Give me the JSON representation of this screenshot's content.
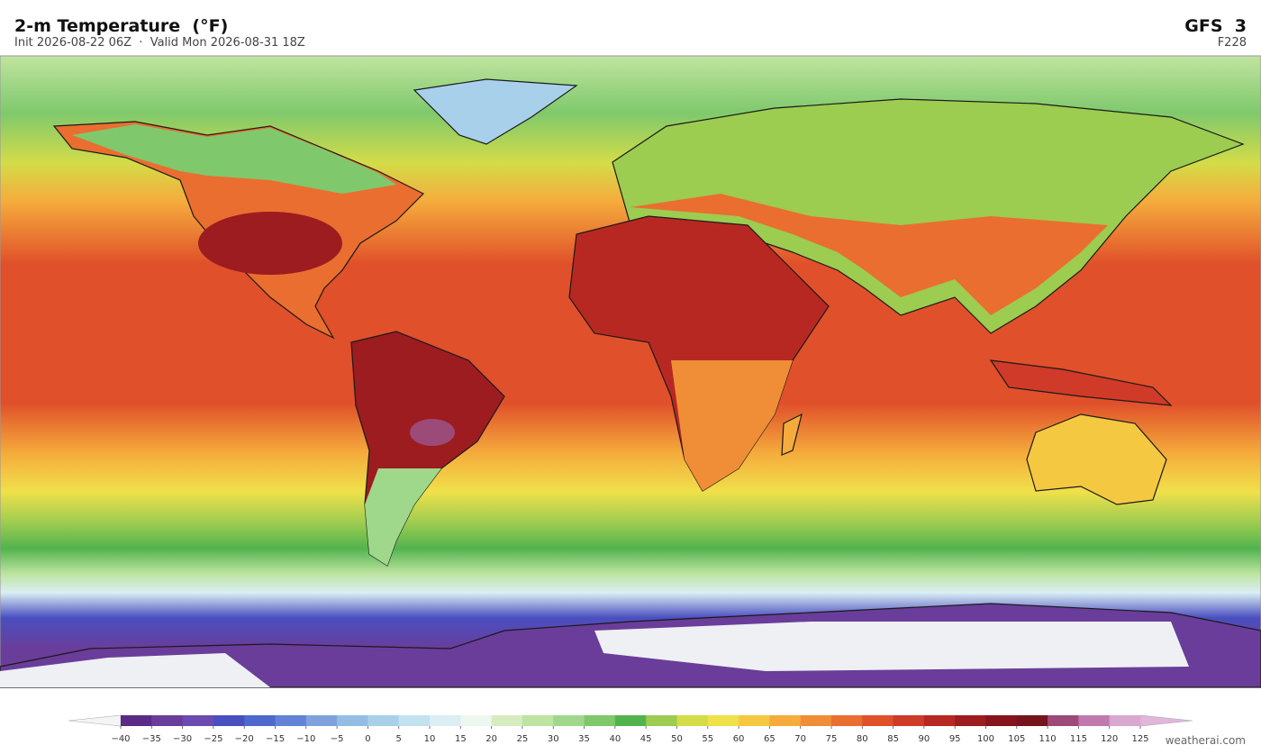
{
  "header": {
    "title": "2-m Temperature  (°F)",
    "subtitle": "Init 2026-08-22 06Z  ·  Valid Mon 2026-08-31 18Z",
    "model": "GFS  3",
    "forecast_hour": "F228"
  },
  "colorbar": {
    "ticks": [
      {
        "value": -40,
        "label": "−40"
      },
      {
        "value": -35,
        "label": "−35"
      },
      {
        "value": -30,
        "label": "−30"
      },
      {
        "value": -25,
        "label": "−25"
      },
      {
        "value": -20,
        "label": "−20"
      },
      {
        "value": -15,
        "label": "−15"
      },
      {
        "value": -10,
        "label": "−10"
      },
      {
        "value": -5,
        "label": "−5"
      },
      0,
      5,
      10,
      15,
      20,
      25,
      30,
      35,
      40,
      45,
      50,
      55,
      60,
      65,
      70,
      75,
      80,
      85,
      90,
      95,
      100,
      105,
      110,
      115,
      120,
      125
    ],
    "colors": [
      "#5b2a86",
      "#6a3d9a",
      "#6b4bb0",
      "#4a4fc0",
      "#4f68cc",
      "#6283d6",
      "#7fa2dc",
      "#94bde3",
      "#a9d0ea",
      "#c2e2f0",
      "#daeef3",
      "#eef6f0",
      "#d6ecc0",
      "#bde4a0",
      "#9fd88a",
      "#7fc96c",
      "#52b34e",
      "#9ccc50",
      "#d4dc48",
      "#f0e04a",
      "#f5c842",
      "#f5ac3c",
      "#f08e38",
      "#ea6e30",
      "#e0502a",
      "#d03a28",
      "#b82822",
      "#9c1c20",
      "#85141c",
      "#74141c",
      "#9c4a78",
      "#c07ab0",
      "#d9a8d0"
    ],
    "under_color": "#f4f4f4",
    "over_color": "#e2b6da"
  },
  "footer": {
    "credit": "weatherai.com"
  }
}
